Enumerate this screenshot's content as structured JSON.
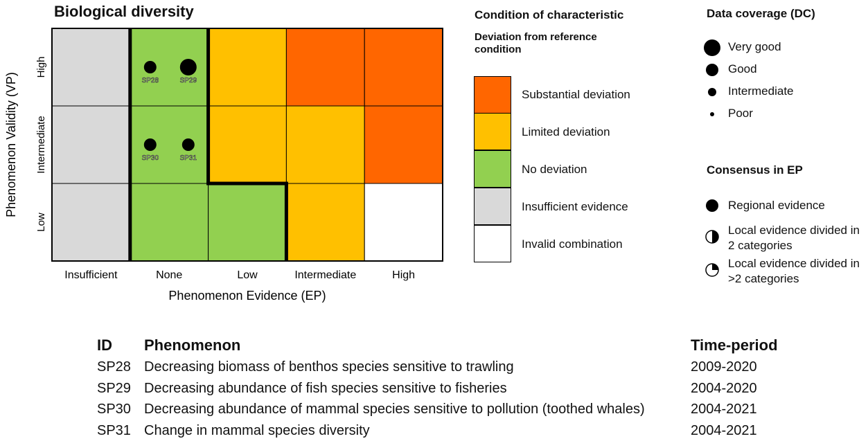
{
  "title": "Biological diversity",
  "matrix": {
    "y_axis_label": "Phenomenon Validity (VP)",
    "x_axis_label": "Phenomenon Evidence (EP)",
    "columns": [
      "Insufficient",
      "None",
      "Low",
      "Intermediate",
      "High"
    ],
    "rows": [
      {
        "label": "High",
        "cells": [
          {
            "condition": "Insufficient evidence"
          },
          {
            "condition": "No deviation",
            "points": [
              {
                "label": "SP28",
                "coverage": "Good"
              },
              {
                "label": "SP29",
                "coverage": "Very good"
              }
            ]
          },
          {
            "condition": "Limited deviation"
          },
          {
            "condition": "Substantial deviation"
          },
          {
            "condition": "Substantial deviation"
          }
        ]
      },
      {
        "label": "Intermediate",
        "cells": [
          {
            "condition": "Insufficient evidence"
          },
          {
            "condition": "No deviation",
            "points": [
              {
                "label": "SP30",
                "coverage": "Good"
              },
              {
                "label": "SP31",
                "coverage": "Good"
              }
            ]
          },
          {
            "condition": "Limited deviation"
          },
          {
            "condition": "Limited deviation"
          },
          {
            "condition": "Substantial deviation"
          }
        ]
      },
      {
        "label": "Low",
        "cells": [
          {
            "condition": "Insufficient evidence"
          },
          {
            "condition": "No deviation"
          },
          {
            "condition": "No deviation"
          },
          {
            "condition": "Limited deviation"
          },
          {
            "condition": "Invalid combination"
          }
        ]
      }
    ]
  },
  "condition_legend": {
    "title": "Condition of characteristic",
    "subtitle": "Deviation from reference condition",
    "items": [
      {
        "name": "Substantial deviation",
        "color": "#ff6600"
      },
      {
        "name": "Limited deviation",
        "color": "#ffc000"
      },
      {
        "name": "No deviation",
        "color": "#92d050"
      },
      {
        "name": "Insufficient evidence",
        "color": "#d9d9d9"
      },
      {
        "name": "Invalid combination",
        "color": "#ffffff"
      }
    ]
  },
  "coverage_legend": {
    "title": "Data coverage (DC)",
    "items": [
      "Very good",
      "Good",
      "Intermediate",
      "Poor"
    ]
  },
  "consensus_legend": {
    "title": "Consensus in EP",
    "items": [
      "Regional evidence",
      "Local evidence divided in 2 categories",
      "Local evidence divided in >2 categories"
    ]
  },
  "table": {
    "headers": [
      "ID",
      "Phenomenon",
      "Time-period"
    ],
    "rows": [
      [
        "SP28",
        "Decreasing biomass of benthos species sensitive to trawling",
        "2009-2020"
      ],
      [
        "SP29",
        "Decreasing abundance of fish species sensitive to fisheries",
        "2004-2020"
      ],
      [
        "SP30",
        "Decreasing abundance of mammal species sensitive to pollution (toothed whales)",
        "2004-2021"
      ],
      [
        "SP31",
        "Change in mammal species diversity",
        "2004-2021"
      ]
    ]
  }
}
